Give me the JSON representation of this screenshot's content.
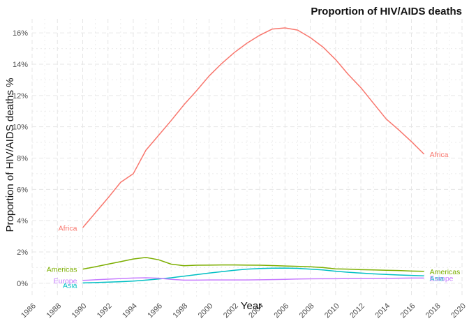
{
  "chart_data": {
    "type": "line",
    "title": "Proportion of HIV/AIDS deaths",
    "xlabel": "Year",
    "ylabel": "Proportion of HIV/AIDS deaths %",
    "xlim": [
      1986,
      2020
    ],
    "ylim": [
      -0.9,
      16.9
    ],
    "x_ticks": [
      1986,
      1988,
      1990,
      1992,
      1994,
      1996,
      1998,
      2000,
      2002,
      2004,
      2006,
      2008,
      2010,
      2012,
      2014,
      2016,
      2018,
      2020
    ],
    "y_ticks": [
      0,
      2,
      4,
      6,
      8,
      10,
      12,
      14,
      16
    ],
    "y_tick_labels": [
      "0%",
      "2%",
      "4%",
      "6%",
      "8%",
      "10%",
      "12%",
      "14%",
      "16%"
    ],
    "grid": true,
    "legend": "none",
    "x": [
      1990,
      1991,
      1992,
      1993,
      1994,
      1995,
      1996,
      1997,
      1998,
      1999,
      2000,
      2001,
      2002,
      2003,
      2004,
      2005,
      2006,
      2007,
      2008,
      2009,
      2010,
      2011,
      2012,
      2013,
      2014,
      2015,
      2016,
      2017
    ],
    "series": [
      {
        "name": "Africa",
        "color": "#F8766D",
        "values": [
          3.55,
          4.5,
          5.45,
          6.45,
          7.0,
          8.5,
          9.45,
          10.4,
          11.4,
          12.3,
          13.25,
          14.05,
          14.75,
          15.35,
          15.85,
          16.25,
          16.32,
          16.18,
          15.7,
          15.1,
          14.3,
          13.35,
          12.5,
          11.5,
          10.5,
          9.8,
          9.05,
          8.25
        ]
      },
      {
        "name": "Americas",
        "color": "#7CAE00",
        "values": [
          0.9,
          1.05,
          1.22,
          1.38,
          1.55,
          1.65,
          1.5,
          1.22,
          1.12,
          1.15,
          1.16,
          1.17,
          1.17,
          1.16,
          1.15,
          1.13,
          1.1,
          1.08,
          1.05,
          1.0,
          0.92,
          0.9,
          0.87,
          0.85,
          0.83,
          0.81,
          0.78,
          0.76
        ]
      },
      {
        "name": "Asia",
        "color": "#00BFC4",
        "values": [
          0.02,
          0.04,
          0.07,
          0.1,
          0.14,
          0.2,
          0.27,
          0.35,
          0.45,
          0.55,
          0.65,
          0.74,
          0.83,
          0.9,
          0.94,
          0.96,
          0.97,
          0.95,
          0.9,
          0.85,
          0.77,
          0.7,
          0.65,
          0.6,
          0.56,
          0.53,
          0.5,
          0.47
        ]
      },
      {
        "name": "Europe",
        "color": "#C77CFF",
        "values": [
          0.18,
          0.22,
          0.26,
          0.3,
          0.33,
          0.35,
          0.32,
          0.25,
          0.2,
          0.2,
          0.21,
          0.21,
          0.21,
          0.21,
          0.22,
          0.23,
          0.25,
          0.27,
          0.28,
          0.29,
          0.29,
          0.3,
          0.3,
          0.3,
          0.31,
          0.32,
          0.33,
          0.33
        ]
      }
    ],
    "annotations": [
      {
        "text": "Africa",
        "series": "Africa",
        "at": "start"
      },
      {
        "text": "Africa",
        "series": "Africa",
        "at": "end"
      },
      {
        "text": "Americas",
        "series": "Americas",
        "at": "start"
      },
      {
        "text": "Americas",
        "series": "Americas",
        "at": "end"
      },
      {
        "text": "Asia",
        "series": "Asia",
        "at": "start"
      },
      {
        "text": "Asia",
        "series": "Asia",
        "at": "end"
      },
      {
        "text": "Europe",
        "series": "Europe",
        "at": "start"
      },
      {
        "text": "Europe",
        "series": "Europe",
        "at": "end"
      }
    ]
  }
}
